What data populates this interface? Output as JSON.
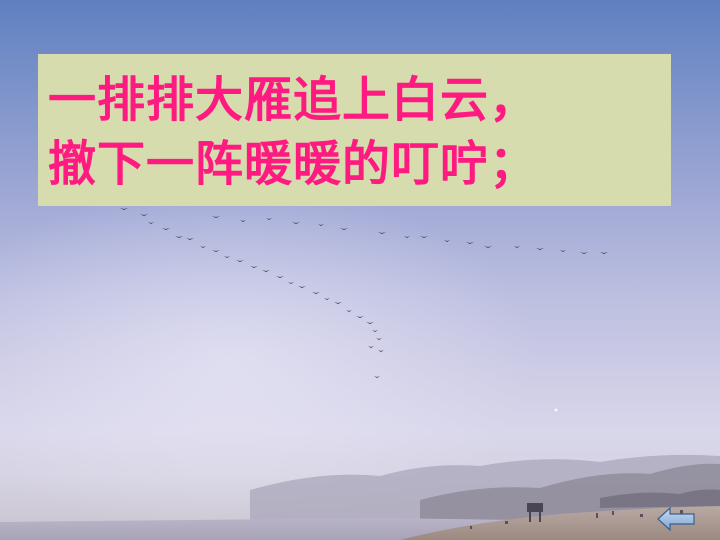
{
  "slide": {
    "lines": [
      "一排排大雁追上白云，",
      "撤下一阵暖暖的叮咛；"
    ]
  },
  "nav": {
    "back_icon": "back-arrow-icon"
  },
  "colors": {
    "text": "#ff1a82",
    "text_box": "#d7dcae",
    "sky_top": "#5f7fc0",
    "sky_bottom": "#d6d3e3",
    "button": "#8fb3dd"
  }
}
